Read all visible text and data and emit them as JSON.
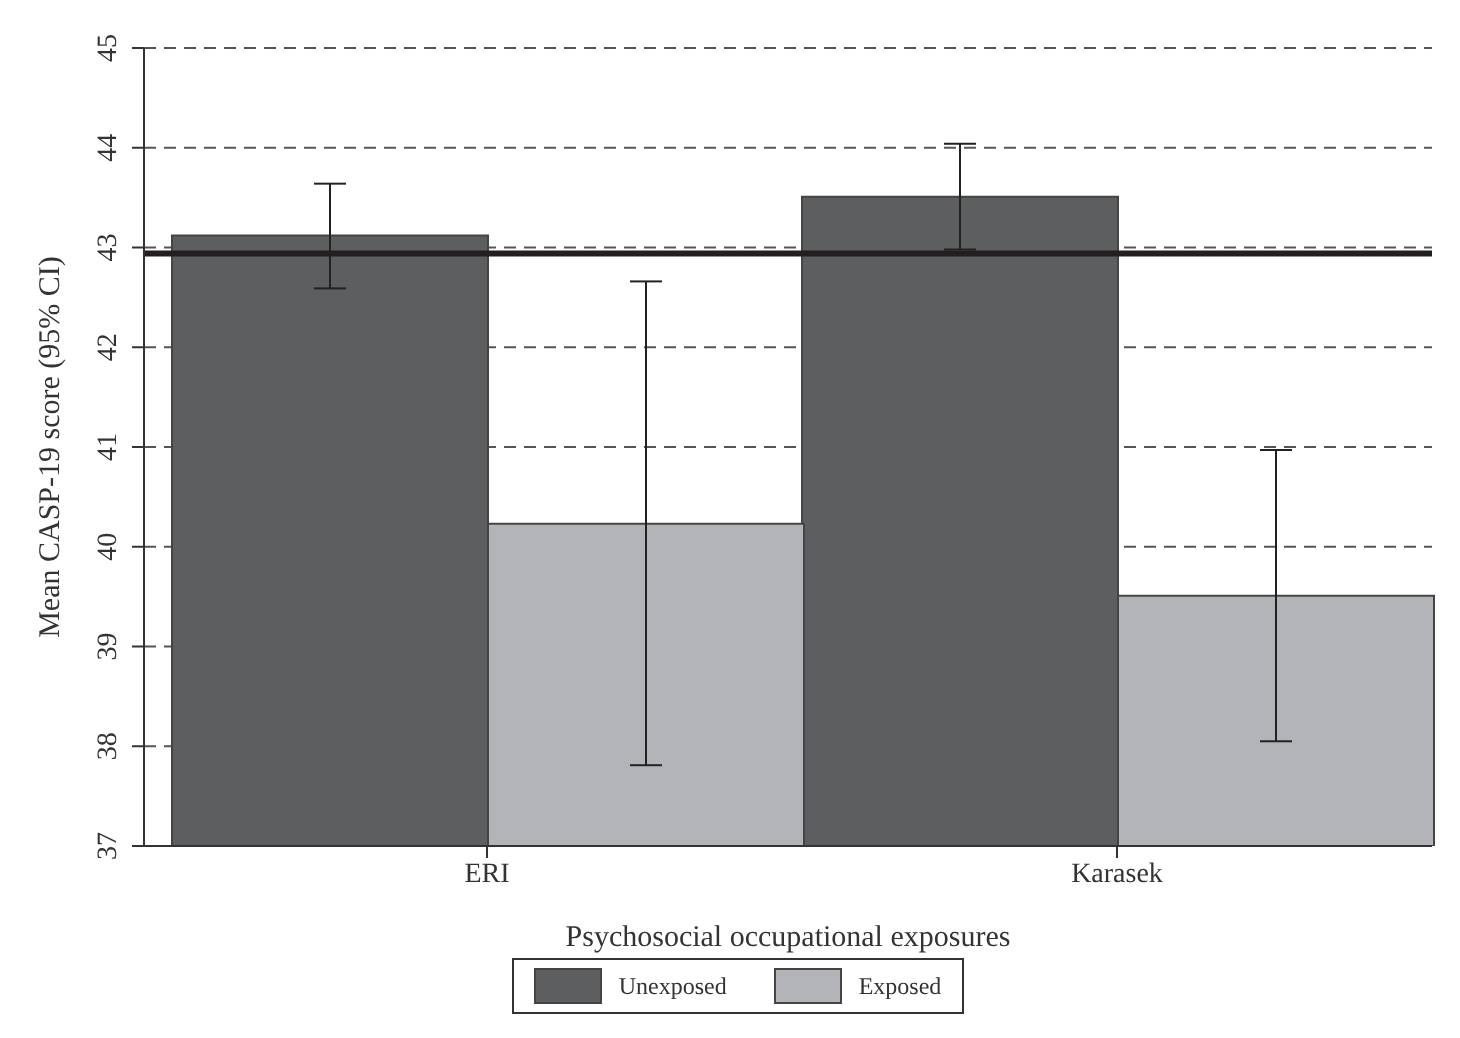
{
  "chart_data": {
    "type": "bar",
    "xlabel": "Psychosocial occupational exposures",
    "ylabel": "Mean CASP-19 score (95% CI)",
    "categories": [
      "ERI",
      "Karasek"
    ],
    "series": [
      {
        "name": "Unexposed",
        "color": "#5d5e60",
        "values": [
          43.12,
          43.51
        ],
        "errors": [
          [
            42.59,
            43.64
          ],
          [
            42.98,
            44.04
          ]
        ]
      },
      {
        "name": "Exposed",
        "color": "#b3b4b7",
        "values": [
          40.23,
          39.51
        ],
        "errors": [
          [
            37.81,
            42.66
          ],
          [
            38.05,
            40.97
          ]
        ]
      }
    ],
    "ylim": [
      37,
      45
    ],
    "yticks": [
      37,
      38,
      39,
      40,
      41,
      42,
      43,
      44,
      45
    ],
    "grid": "y",
    "legend": "bottom",
    "ref_lines": [
      {
        "axis": "y",
        "value": 42.94,
        "color": "#231f20",
        "line_style": "solid"
      }
    ]
  }
}
